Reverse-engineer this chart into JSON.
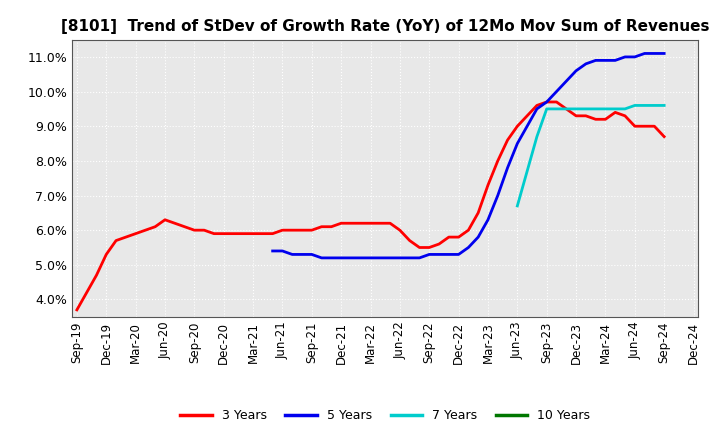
{
  "title": "[8101]  Trend of StDev of Growth Rate (YoY) of 12Mo Mov Sum of Revenues",
  "title_fontsize": 11,
  "background_color": "#ffffff",
  "plot_bg_color": "#e8e8e8",
  "grid_color": "#ffffff",
  "ylim": [
    0.035,
    0.115
  ],
  "yticks": [
    0.04,
    0.05,
    0.06,
    0.07,
    0.08,
    0.09,
    0.1,
    0.11
  ],
  "legend_labels": [
    "3 Years",
    "5 Years",
    "7 Years",
    "10 Years"
  ],
  "legend_colors": [
    "#ff0000",
    "#0000ee",
    "#00cccc",
    "#007700"
  ],
  "series": {
    "3yr": {
      "color": "#ff0000",
      "y": [
        0.037,
        0.042,
        0.047,
        0.053,
        0.057,
        0.058,
        0.059,
        0.06,
        0.061,
        0.063,
        0.062,
        0.061,
        0.06,
        0.06,
        0.059,
        0.059,
        0.059,
        0.059,
        0.059,
        0.059,
        0.059,
        0.06,
        0.06,
        0.06,
        0.06,
        0.061,
        0.061,
        0.062,
        0.062,
        0.062,
        0.062,
        0.062,
        0.062,
        0.06,
        0.057,
        0.055,
        0.055,
        0.056,
        0.058,
        0.058,
        0.06,
        0.065,
        0.073,
        0.08,
        0.086,
        0.09,
        0.093,
        0.096,
        0.097,
        0.097,
        0.095,
        0.093,
        0.093,
        0.092,
        0.092,
        0.094,
        0.093,
        0.09,
        0.09,
        0.09,
        0.087,
        null,
        null,
        null
      ]
    },
    "5yr": {
      "color": "#0000ee",
      "y": [
        null,
        null,
        null,
        null,
        null,
        null,
        null,
        null,
        null,
        null,
        null,
        null,
        null,
        null,
        null,
        null,
        null,
        null,
        null,
        null,
        0.054,
        0.054,
        0.053,
        0.053,
        0.053,
        0.052,
        0.052,
        0.052,
        0.052,
        0.052,
        0.052,
        0.052,
        0.052,
        0.052,
        0.052,
        0.052,
        0.053,
        0.053,
        0.053,
        0.053,
        0.055,
        0.058,
        0.063,
        0.07,
        0.078,
        0.085,
        0.09,
        0.095,
        0.097,
        0.1,
        0.103,
        0.106,
        0.108,
        0.109,
        0.109,
        0.109,
        0.11,
        0.11,
        0.111,
        0.111,
        0.111,
        null,
        null,
        null
      ]
    },
    "7yr": {
      "color": "#00cccc",
      "y": [
        null,
        null,
        null,
        null,
        null,
        null,
        null,
        null,
        null,
        null,
        null,
        null,
        null,
        null,
        null,
        null,
        null,
        null,
        null,
        null,
        null,
        null,
        null,
        null,
        null,
        null,
        null,
        null,
        null,
        null,
        null,
        null,
        null,
        null,
        null,
        null,
        null,
        null,
        null,
        null,
        null,
        null,
        null,
        null,
        null,
        0.067,
        0.077,
        0.087,
        0.095,
        0.095,
        0.095,
        0.095,
        0.095,
        0.095,
        0.095,
        0.095,
        0.095,
        0.096,
        0.096,
        0.096,
        0.096,
        null,
        null,
        null
      ]
    },
    "10yr": {
      "color": "#007700",
      "y": [
        null,
        null,
        null,
        null,
        null,
        null,
        null,
        null,
        null,
        null,
        null,
        null,
        null,
        null,
        null,
        null,
        null,
        null,
        null,
        null,
        null,
        null,
        null,
        null,
        null,
        null,
        null,
        null,
        null,
        null,
        null,
        null,
        null,
        null,
        null,
        null,
        null,
        null,
        null,
        null,
        null,
        null,
        null,
        null,
        null,
        null,
        null,
        null,
        null,
        null,
        null,
        null,
        null,
        null,
        null,
        null,
        null,
        null,
        null,
        null,
        null,
        null,
        null,
        null
      ]
    }
  },
  "xtick_labels": [
    "Sep-19",
    "Dec-19",
    "Mar-20",
    "Jun-20",
    "Sep-20",
    "Dec-20",
    "Mar-21",
    "Jun-21",
    "Sep-21",
    "Dec-21",
    "Mar-22",
    "Jun-22",
    "Sep-22",
    "Dec-22",
    "Mar-23",
    "Jun-23",
    "Sep-23",
    "Dec-23",
    "Mar-24",
    "Jun-24",
    "Sep-24",
    "Dec-24"
  ],
  "xtick_positions": [
    0,
    3,
    6,
    9,
    12,
    15,
    18,
    21,
    24,
    27,
    30,
    33,
    36,
    39,
    42,
    45,
    48,
    51,
    54,
    57,
    60,
    63
  ]
}
